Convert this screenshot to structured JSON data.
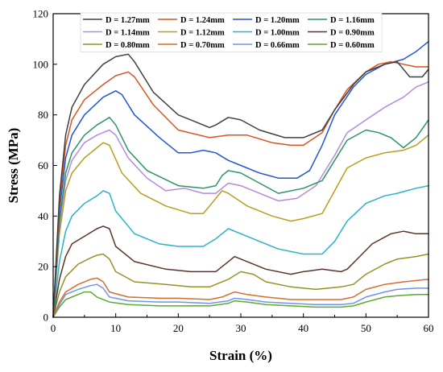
{
  "chart_data": {
    "type": "line",
    "title": "",
    "xlabel": "Strain (%)",
    "ylabel": "Stress (MPa)",
    "xlim": [
      0,
      60
    ],
    "ylim": [
      0,
      120
    ],
    "xticks": [
      0,
      10,
      20,
      30,
      40,
      50,
      60
    ],
    "yticks": [
      0,
      20,
      40,
      60,
      80,
      100,
      120
    ],
    "grid": false,
    "legend": "top",
    "series": [
      {
        "name": "D = 1.27mm",
        "color": "#404040",
        "points": [
          [
            0,
            0
          ],
          [
            1,
            48
          ],
          [
            2,
            72
          ],
          [
            3,
            83
          ],
          [
            5,
            92
          ],
          [
            8,
            100
          ],
          [
            10,
            103
          ],
          [
            12,
            104
          ],
          [
            13,
            101
          ],
          [
            16,
            89
          ],
          [
            20,
            80
          ],
          [
            23,
            77
          ],
          [
            25,
            75
          ],
          [
            26,
            76
          ],
          [
            28,
            79
          ],
          [
            30,
            78
          ],
          [
            33,
            74
          ],
          [
            37,
            71
          ],
          [
            40,
            71
          ],
          [
            43,
            74
          ],
          [
            45,
            82
          ],
          [
            48,
            92
          ],
          [
            50,
            97
          ],
          [
            53,
            100
          ],
          [
            55,
            101
          ],
          [
            57,
            95
          ],
          [
            59,
            95
          ],
          [
            60,
            98
          ]
        ]
      },
      {
        "name": "D = 1.24mm",
        "color": "#d9531e",
        "points": [
          [
            0,
            0
          ],
          [
            1,
            45
          ],
          [
            2,
            68
          ],
          [
            3,
            78
          ],
          [
            5,
            86
          ],
          [
            8,
            92
          ],
          [
            10,
            95.5
          ],
          [
            12,
            97
          ],
          [
            13,
            95
          ],
          [
            16,
            84
          ],
          [
            20,
            74
          ],
          [
            25,
            71
          ],
          [
            28,
            72
          ],
          [
            31,
            72
          ],
          [
            35,
            69
          ],
          [
            38,
            68
          ],
          [
            40,
            68
          ],
          [
            43,
            73
          ],
          [
            45,
            82
          ],
          [
            47,
            90
          ],
          [
            50,
            97
          ],
          [
            52,
            100
          ],
          [
            54,
            101
          ],
          [
            56,
            100
          ],
          [
            58,
            99
          ],
          [
            60,
            99
          ]
        ]
      },
      {
        "name": "D = 1.20mm",
        "color": "#2154d6",
        "points": [
          [
            0,
            0
          ],
          [
            1,
            42
          ],
          [
            2,
            63
          ],
          [
            3,
            72
          ],
          [
            5,
            80
          ],
          [
            8,
            87
          ],
          [
            10,
            89.5
          ],
          [
            11,
            88
          ],
          [
            13,
            80
          ],
          [
            17,
            71
          ],
          [
            20,
            65
          ],
          [
            22,
            65
          ],
          [
            24,
            66
          ],
          [
            26,
            65
          ],
          [
            28,
            62
          ],
          [
            30,
            60
          ],
          [
            33,
            57
          ],
          [
            36,
            55
          ],
          [
            39,
            55
          ],
          [
            41,
            58
          ],
          [
            43,
            68
          ],
          [
            45,
            80
          ],
          [
            48,
            91
          ],
          [
            50,
            96
          ],
          [
            53,
            100
          ],
          [
            56,
            102
          ],
          [
            58,
            105
          ],
          [
            60,
            109
          ]
        ]
      },
      {
        "name": "D = 1.16mm",
        "color": "#2a9464",
        "points": [
          [
            0,
            0
          ],
          [
            1,
            38
          ],
          [
            2,
            57
          ],
          [
            3,
            65
          ],
          [
            5,
            72
          ],
          [
            7,
            76
          ],
          [
            9,
            79
          ],
          [
            10,
            76
          ],
          [
            12,
            66
          ],
          [
            15,
            58
          ],
          [
            20,
            52
          ],
          [
            24,
            51
          ],
          [
            26,
            52
          ],
          [
            27,
            56
          ],
          [
            28,
            58
          ],
          [
            30,
            57
          ],
          [
            33,
            53
          ],
          [
            36,
            49
          ],
          [
            40,
            51
          ],
          [
            43,
            54
          ],
          [
            45,
            62
          ],
          [
            47,
            70
          ],
          [
            50,
            74
          ],
          [
            52,
            73
          ],
          [
            54,
            71
          ],
          [
            56,
            67
          ],
          [
            58,
            71
          ],
          [
            60,
            78
          ]
        ]
      },
      {
        "name": "D = 1.14mm",
        "color": "#b48ae0",
        "points": [
          [
            0,
            0
          ],
          [
            1,
            36
          ],
          [
            2,
            54
          ],
          [
            3,
            62
          ],
          [
            5,
            69
          ],
          [
            7,
            72
          ],
          [
            9,
            74
          ],
          [
            10,
            72
          ],
          [
            12,
            63
          ],
          [
            15,
            55
          ],
          [
            18,
            50
          ],
          [
            21,
            51
          ],
          [
            24,
            49
          ],
          [
            26,
            49
          ],
          [
            28,
            53
          ],
          [
            30,
            52
          ],
          [
            33,
            49
          ],
          [
            36,
            46
          ],
          [
            39,
            47
          ],
          [
            42,
            52
          ],
          [
            45,
            64
          ],
          [
            47,
            73
          ],
          [
            50,
            78
          ],
          [
            53,
            83
          ],
          [
            56,
            87
          ],
          [
            58,
            91
          ],
          [
            60,
            93
          ]
        ]
      },
      {
        "name": "D = 1.12mm",
        "color": "#b79e1b",
        "points": [
          [
            0,
            0
          ],
          [
            1,
            33
          ],
          [
            2,
            50
          ],
          [
            3,
            57
          ],
          [
            5,
            63
          ],
          [
            7,
            67
          ],
          [
            8,
            69
          ],
          [
            9,
            68
          ],
          [
            11,
            57
          ],
          [
            14,
            49
          ],
          [
            18,
            44
          ],
          [
            22,
            41
          ],
          [
            24,
            41
          ],
          [
            25,
            44
          ],
          [
            27,
            50
          ],
          [
            28,
            49
          ],
          [
            31,
            44
          ],
          [
            35,
            40
          ],
          [
            38,
            38
          ],
          [
            40,
            39
          ],
          [
            43,
            41
          ],
          [
            45,
            50
          ],
          [
            47,
            59
          ],
          [
            50,
            63
          ],
          [
            53,
            65
          ],
          [
            56,
            66
          ],
          [
            58,
            68
          ],
          [
            60,
            72
          ]
        ]
      },
      {
        "name": "D = 1.00mm",
        "color": "#29b3c9",
        "points": [
          [
            0,
            0
          ],
          [
            1,
            22
          ],
          [
            2,
            34
          ],
          [
            3,
            40
          ],
          [
            5,
            45
          ],
          [
            7,
            48
          ],
          [
            8,
            50
          ],
          [
            9,
            49
          ],
          [
            10,
            42
          ],
          [
            13,
            33
          ],
          [
            17,
            29
          ],
          [
            20,
            28
          ],
          [
            24,
            28
          ],
          [
            26,
            31
          ],
          [
            28,
            35
          ],
          [
            30,
            33
          ],
          [
            33,
            30
          ],
          [
            36,
            27
          ],
          [
            40,
            25
          ],
          [
            43,
            25
          ],
          [
            45,
            30
          ],
          [
            47,
            38
          ],
          [
            50,
            45
          ],
          [
            53,
            48
          ],
          [
            55,
            49
          ],
          [
            58,
            51
          ],
          [
            60,
            52
          ]
        ]
      },
      {
        "name": "D = 0.90mm",
        "color": "#5a3428",
        "points": [
          [
            0,
            0
          ],
          [
            1,
            15
          ],
          [
            2,
            24
          ],
          [
            3,
            29
          ],
          [
            5,
            32
          ],
          [
            7,
            35
          ],
          [
            8,
            36
          ],
          [
            9,
            35
          ],
          [
            10,
            28
          ],
          [
            13,
            22
          ],
          [
            18,
            19
          ],
          [
            22,
            18
          ],
          [
            26,
            18
          ],
          [
            28,
            22
          ],
          [
            29,
            24
          ],
          [
            31,
            22
          ],
          [
            34,
            19
          ],
          [
            38,
            17
          ],
          [
            40,
            18
          ],
          [
            43,
            19
          ],
          [
            46,
            18
          ],
          [
            47,
            19
          ],
          [
            49,
            24
          ],
          [
            51,
            29
          ],
          [
            54,
            33
          ],
          [
            56,
            34
          ],
          [
            58,
            33
          ],
          [
            60,
            33
          ]
        ]
      },
      {
        "name": "D = 0.80mm",
        "color": "#959221",
        "points": [
          [
            0,
            0
          ],
          [
            1,
            10
          ],
          [
            2,
            16
          ],
          [
            4,
            21
          ],
          [
            6,
            23.5
          ],
          [
            7,
            24.5
          ],
          [
            8,
            25
          ],
          [
            9,
            23
          ],
          [
            10,
            18
          ],
          [
            13,
            14
          ],
          [
            18,
            13
          ],
          [
            22,
            12
          ],
          [
            25,
            12
          ],
          [
            28,
            15
          ],
          [
            30,
            18
          ],
          [
            32,
            17
          ],
          [
            34,
            14
          ],
          [
            38,
            12
          ],
          [
            42,
            11
          ],
          [
            46,
            12
          ],
          [
            48,
            13
          ],
          [
            50,
            17
          ],
          [
            53,
            21
          ],
          [
            55,
            23
          ],
          [
            58,
            24
          ],
          [
            60,
            25
          ]
        ]
      },
      {
        "name": "D = 0.70mm",
        "color": "#d66c2d",
        "points": [
          [
            0,
            0
          ],
          [
            1,
            6
          ],
          [
            2,
            10
          ],
          [
            4,
            13
          ],
          [
            6,
            15
          ],
          [
            7,
            15.5
          ],
          [
            8,
            14
          ],
          [
            9,
            10
          ],
          [
            12,
            8
          ],
          [
            17,
            7.5
          ],
          [
            20,
            7.5
          ],
          [
            25,
            7
          ],
          [
            27,
            8
          ],
          [
            29,
            10
          ],
          [
            31,
            9
          ],
          [
            34,
            8
          ],
          [
            38,
            7
          ],
          [
            42,
            7
          ],
          [
            46,
            7
          ],
          [
            48,
            8
          ],
          [
            50,
            11
          ],
          [
            53,
            13
          ],
          [
            56,
            14
          ],
          [
            60,
            15
          ]
        ]
      },
      {
        "name": "D = 0.66mm",
        "color": "#6f94ec",
        "points": [
          [
            0,
            0
          ],
          [
            1,
            5
          ],
          [
            2,
            9
          ],
          [
            4,
            11
          ],
          [
            6,
            12.5
          ],
          [
            7,
            13
          ],
          [
            8,
            11.5
          ],
          [
            9,
            8
          ],
          [
            12,
            6.5
          ],
          [
            17,
            6
          ],
          [
            20,
            6
          ],
          [
            25,
            5.5
          ],
          [
            28,
            6.5
          ],
          [
            29,
            7.5
          ],
          [
            31,
            7
          ],
          [
            34,
            6
          ],
          [
            38,
            5.5
          ],
          [
            42,
            5
          ],
          [
            46,
            5
          ],
          [
            48,
            5.5
          ],
          [
            50,
            8
          ],
          [
            53,
            10
          ],
          [
            55,
            11
          ],
          [
            58,
            11.5
          ],
          [
            60,
            11.5
          ]
        ]
      },
      {
        "name": "D = 0.60mm",
        "color": "#5caa2e",
        "points": [
          [
            0,
            0
          ],
          [
            1,
            4
          ],
          [
            2,
            7
          ],
          [
            4,
            9
          ],
          [
            5,
            10
          ],
          [
            6,
            10
          ],
          [
            7,
            8
          ],
          [
            9,
            6
          ],
          [
            12,
            5
          ],
          [
            17,
            4.5
          ],
          [
            20,
            4.5
          ],
          [
            25,
            4.5
          ],
          [
            28,
            5.5
          ],
          [
            29,
            6.5
          ],
          [
            31,
            6
          ],
          [
            34,
            5
          ],
          [
            38,
            4.5
          ],
          [
            42,
            4
          ],
          [
            46,
            4
          ],
          [
            48,
            4.5
          ],
          [
            50,
            6
          ],
          [
            53,
            8
          ],
          [
            55,
            8.5
          ],
          [
            58,
            9
          ],
          [
            60,
            9
          ]
        ]
      }
    ]
  }
}
